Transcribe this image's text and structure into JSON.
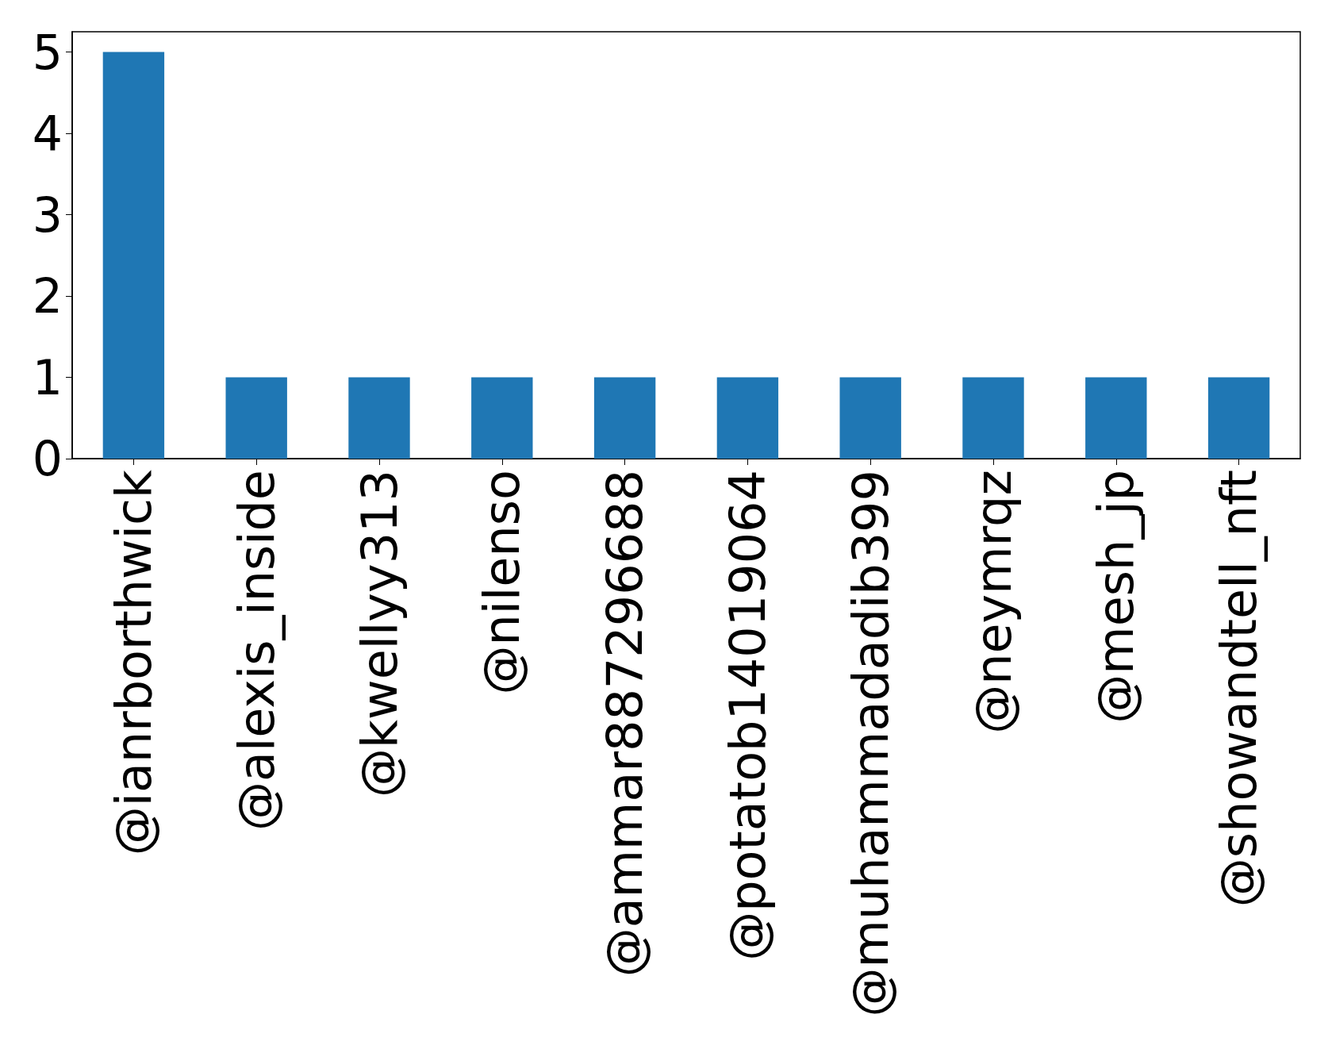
{
  "chart_data": {
    "type": "bar",
    "categories": [
      "@ianrborthwick",
      "@alexis_inside",
      "@kwellyy313",
      "@nilenso",
      "@ammar887296688",
      "@potatob14019064",
      "@muhammadadib399",
      "@neymrqz",
      "@mesh_jp",
      "@showandtell_nft"
    ],
    "values": [
      5,
      1,
      1,
      1,
      1,
      1,
      1,
      1,
      1,
      1
    ],
    "color": "#1f77b4",
    "ylim": [
      0,
      5.25
    ],
    "yticks": [
      0,
      1,
      2,
      3,
      4,
      5
    ],
    "grid": false
  }
}
